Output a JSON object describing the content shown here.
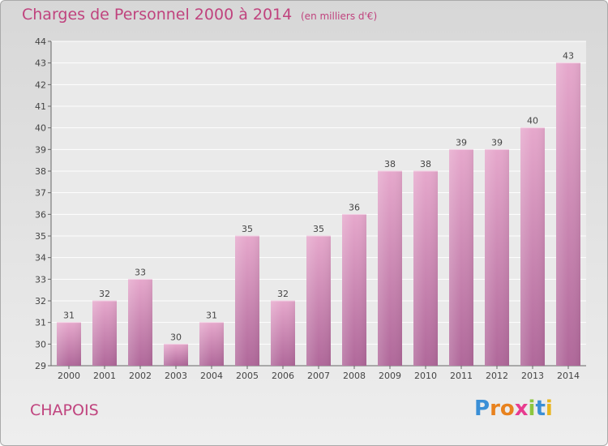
{
  "title": "Charges de Personnel 2000 à 2014",
  "subtitle": "(en milliers d'€)",
  "commune": "CHAPOIS",
  "logo": {
    "letters": [
      "P",
      "r",
      "o",
      "x",
      "i",
      "t",
      "i"
    ],
    "colors": [
      "#3a8fd6",
      "#e8821e",
      "#e8821e",
      "#e83b8f",
      "#8cc63f",
      "#3a8fd6",
      "#e8b51e"
    ]
  },
  "colors": {
    "accent": "#c0437e",
    "bar_top": "#e6a8cc",
    "bar_bottom": "#b0689a"
  },
  "chart_data": {
    "type": "bar",
    "categories": [
      "2000",
      "2001",
      "2002",
      "2003",
      "2004",
      "2005",
      "2006",
      "2007",
      "2008",
      "2009",
      "2010",
      "2011",
      "2012",
      "2013",
      "2014"
    ],
    "values": [
      31,
      32,
      33,
      30,
      31,
      35,
      32,
      35,
      36,
      38,
      38,
      39,
      39,
      40,
      43
    ],
    "title": "Charges de Personnel 2000 à 2014",
    "ylim": [
      29,
      44
    ],
    "yticks": [
      29,
      30,
      31,
      32,
      33,
      34,
      35,
      36,
      37,
      38,
      39,
      40,
      41,
      42,
      43,
      44
    ],
    "grid": true
  }
}
